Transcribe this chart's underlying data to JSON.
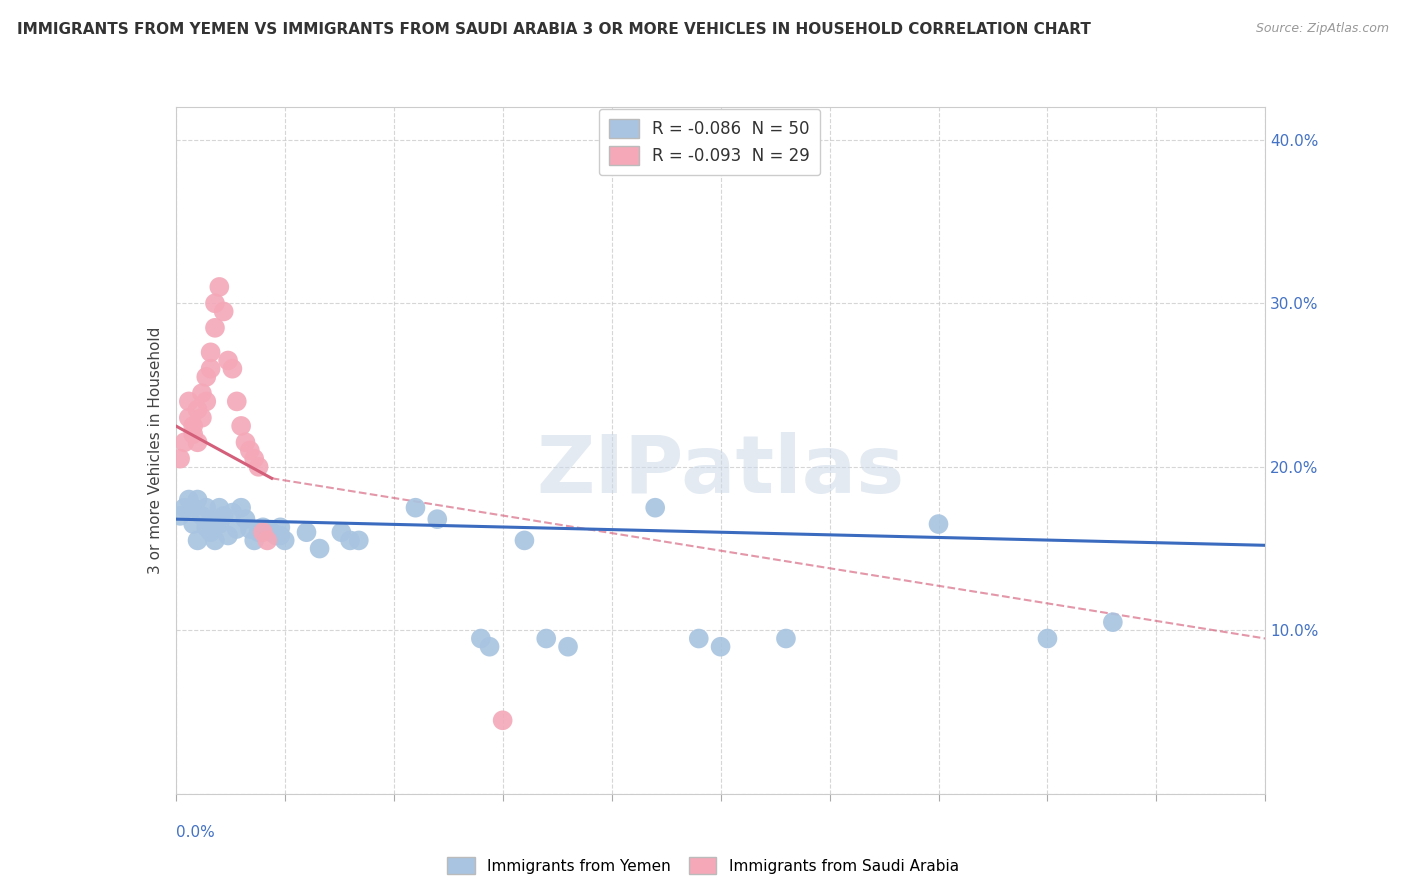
{
  "title": "IMMIGRANTS FROM YEMEN VS IMMIGRANTS FROM SAUDI ARABIA 3 OR MORE VEHICLES IN HOUSEHOLD CORRELATION CHART",
  "source": "Source: ZipAtlas.com",
  "ylabel": "3 or more Vehicles in Household",
  "legend1_label": "R = -0.086  N = 50",
  "legend2_label": "R = -0.093  N = 29",
  "legend1_color": "#a8c4e0",
  "legend2_color": "#f4a8b8",
  "line1_color": "#3a6bbf",
  "line2_color": "#d45f7a",
  "watermark": "ZIPatlas",
  "xlim": [
    0.0,
    0.25
  ],
  "ylim": [
    0.0,
    0.42
  ],
  "yticks": [
    0.0,
    0.1,
    0.2,
    0.3,
    0.4
  ],
  "ytick_labels": [
    "",
    "10.0%",
    "20.0%",
    "30.0%",
    "40.0%"
  ],
  "background_color": "#ffffff",
  "yemen_points": [
    [
      0.001,
      0.17
    ],
    [
      0.002,
      0.175
    ],
    [
      0.003,
      0.18
    ],
    [
      0.004,
      0.165
    ],
    [
      0.004,
      0.175
    ],
    [
      0.005,
      0.18
    ],
    [
      0.005,
      0.155
    ],
    [
      0.006,
      0.17
    ],
    [
      0.007,
      0.175
    ],
    [
      0.007,
      0.163
    ],
    [
      0.008,
      0.167
    ],
    [
      0.008,
      0.16
    ],
    [
      0.009,
      0.165
    ],
    [
      0.009,
      0.155
    ],
    [
      0.01,
      0.175
    ],
    [
      0.01,
      0.165
    ],
    [
      0.011,
      0.17
    ],
    [
      0.012,
      0.158
    ],
    [
      0.013,
      0.172
    ],
    [
      0.014,
      0.162
    ],
    [
      0.015,
      0.175
    ],
    [
      0.016,
      0.168
    ],
    [
      0.017,
      0.162
    ],
    [
      0.018,
      0.155
    ],
    [
      0.019,
      0.16
    ],
    [
      0.02,
      0.163
    ],
    [
      0.022,
      0.16
    ],
    [
      0.023,
      0.158
    ],
    [
      0.024,
      0.163
    ],
    [
      0.024,
      0.158
    ],
    [
      0.025,
      0.155
    ],
    [
      0.03,
      0.16
    ],
    [
      0.033,
      0.15
    ],
    [
      0.038,
      0.16
    ],
    [
      0.04,
      0.155
    ],
    [
      0.042,
      0.155
    ],
    [
      0.055,
      0.175
    ],
    [
      0.06,
      0.168
    ],
    [
      0.07,
      0.095
    ],
    [
      0.072,
      0.09
    ],
    [
      0.08,
      0.155
    ],
    [
      0.085,
      0.095
    ],
    [
      0.09,
      0.09
    ],
    [
      0.11,
      0.175
    ],
    [
      0.12,
      0.095
    ],
    [
      0.125,
      0.09
    ],
    [
      0.14,
      0.095
    ],
    [
      0.175,
      0.165
    ],
    [
      0.2,
      0.095
    ],
    [
      0.215,
      0.105
    ]
  ],
  "saudi_points": [
    [
      0.001,
      0.205
    ],
    [
      0.002,
      0.215
    ],
    [
      0.003,
      0.23
    ],
    [
      0.003,
      0.24
    ],
    [
      0.004,
      0.225
    ],
    [
      0.004,
      0.22
    ],
    [
      0.005,
      0.235
    ],
    [
      0.005,
      0.215
    ],
    [
      0.006,
      0.245
    ],
    [
      0.006,
      0.23
    ],
    [
      0.007,
      0.255
    ],
    [
      0.007,
      0.24
    ],
    [
      0.008,
      0.27
    ],
    [
      0.008,
      0.26
    ],
    [
      0.009,
      0.3
    ],
    [
      0.009,
      0.285
    ],
    [
      0.01,
      0.31
    ],
    [
      0.011,
      0.295
    ],
    [
      0.012,
      0.265
    ],
    [
      0.013,
      0.26
    ],
    [
      0.014,
      0.24
    ],
    [
      0.015,
      0.225
    ],
    [
      0.016,
      0.215
    ],
    [
      0.017,
      0.21
    ],
    [
      0.018,
      0.205
    ],
    [
      0.019,
      0.2
    ],
    [
      0.02,
      0.16
    ],
    [
      0.021,
      0.155
    ],
    [
      0.075,
      0.045
    ]
  ],
  "line1_x": [
    0.0,
    0.25
  ],
  "line1_y": [
    0.168,
    0.152
  ],
  "line2_x": [
    0.0,
    0.022
  ],
  "line2_y": [
    0.225,
    0.193
  ],
  "dashed_line_x": [
    0.022,
    0.25
  ],
  "dashed_line_y": [
    0.193,
    0.095
  ]
}
